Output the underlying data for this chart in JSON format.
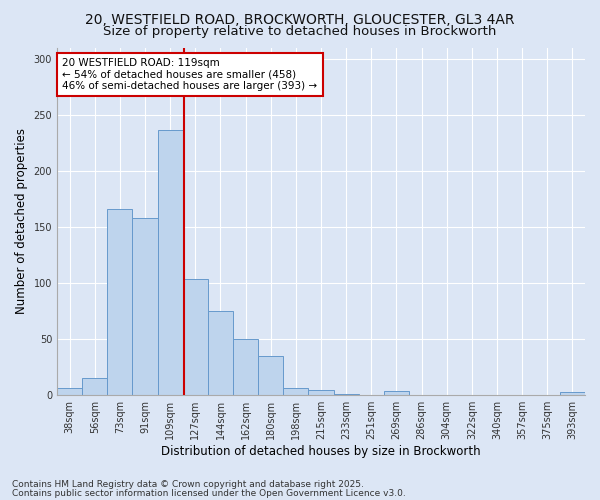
{
  "title_line1": "20, WESTFIELD ROAD, BROCKWORTH, GLOUCESTER, GL3 4AR",
  "title_line2": "Size of property relative to detached houses in Brockworth",
  "xlabel": "Distribution of detached houses by size in Brockworth",
  "ylabel": "Number of detached properties",
  "categories": [
    "38sqm",
    "56sqm",
    "73sqm",
    "91sqm",
    "109sqm",
    "127sqm",
    "144sqm",
    "162sqm",
    "180sqm",
    "198sqm",
    "215sqm",
    "233sqm",
    "251sqm",
    "269sqm",
    "286sqm",
    "304sqm",
    "322sqm",
    "340sqm",
    "357sqm",
    "375sqm",
    "393sqm"
  ],
  "values": [
    6,
    15,
    166,
    158,
    236,
    103,
    75,
    50,
    35,
    6,
    4,
    1,
    0,
    3,
    0,
    0,
    0,
    0,
    0,
    0,
    2
  ],
  "bar_color": "#bed4ed",
  "bar_edge_color": "#6699cc",
  "bg_color": "#dce6f5",
  "grid_color": "#ffffff",
  "vline_color": "#cc0000",
  "annotation_text": "20 WESTFIELD ROAD: 119sqm\n← 54% of detached houses are smaller (458)\n46% of semi-detached houses are larger (393) →",
  "annotation_box_color": "#ffffff",
  "annotation_box_edge": "#cc0000",
  "footnote_line1": "Contains HM Land Registry data © Crown copyright and database right 2025.",
  "footnote_line2": "Contains public sector information licensed under the Open Government Licence v3.0.",
  "ylim": [
    0,
    310
  ],
  "yticks": [
    0,
    50,
    100,
    150,
    200,
    250,
    300
  ],
  "title_fontsize": 10,
  "subtitle_fontsize": 9.5,
  "axis_label_fontsize": 8.5,
  "tick_fontsize": 7,
  "footnote_fontsize": 6.5,
  "annotation_fontsize": 7.5
}
